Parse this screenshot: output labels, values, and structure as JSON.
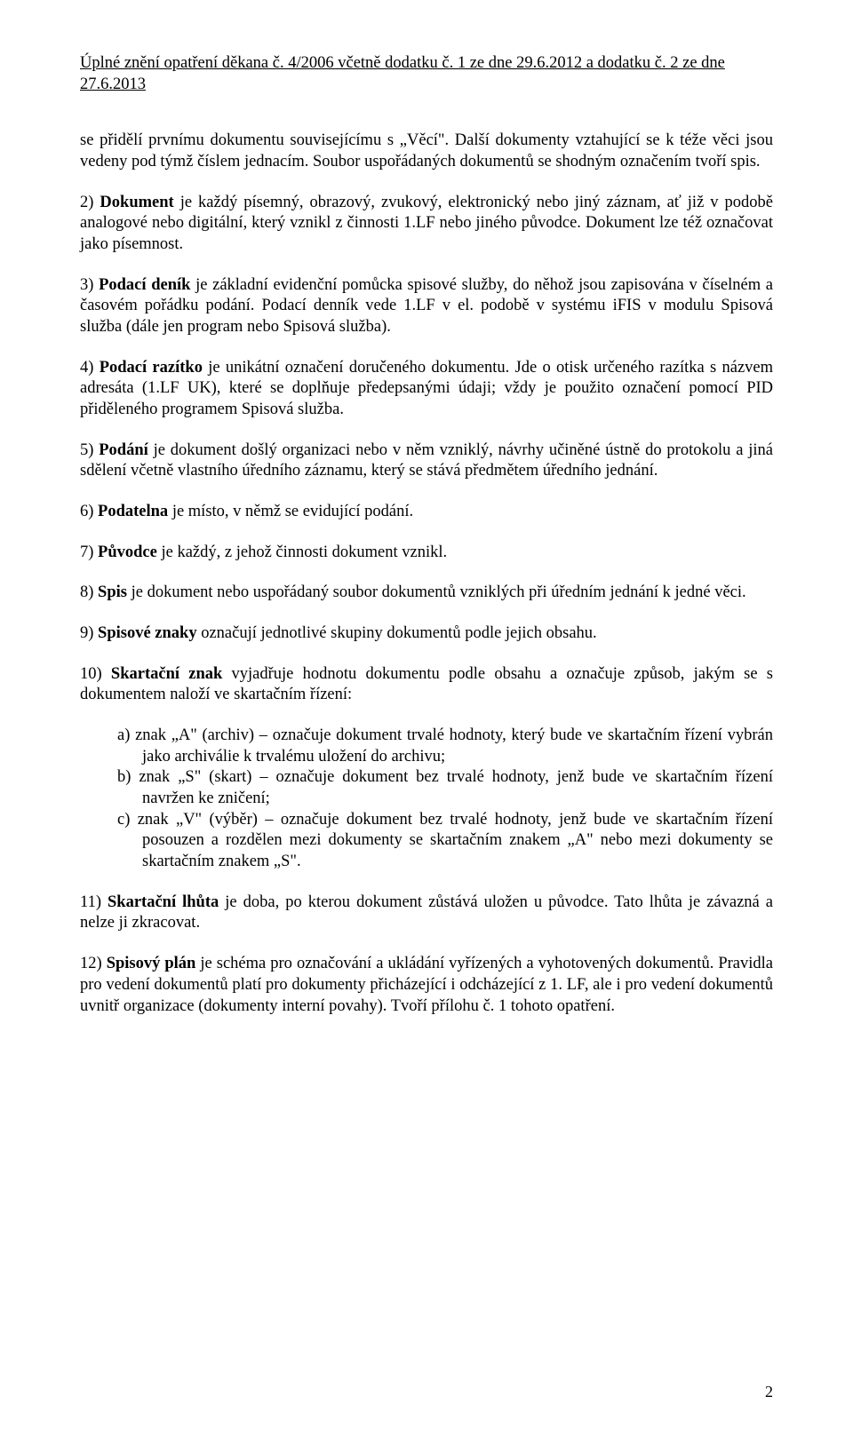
{
  "header": "Úplné znění opatření děkana č. 4/2006 včetně dodatku č. 1 ze dne 29.6.2012 a dodatku č. 2 ze dne 27.6.2013",
  "p0": "se přidělí prvnímu dokumentu souvisejícímu s „Věcí\". Další dokumenty vztahující se k téže věci jsou vedeny pod týmž číslem jednacím. Soubor uspořádaných dokumentů se shodným označením tvoří spis.",
  "p2_a": "2)   ",
  "p2_b": "Dokument",
  "p2_c": " je každý písemný, obrazový, zvukový, elektronický nebo jiný záznam, ať již v podobě analogové nebo digitální, který vznikl z činnosti 1.LF nebo jiného původce. Dokument lze též označovat jako písemnost.",
  "p3_a": "3)   ",
  "p3_b": "Podací deník",
  "p3_c": " je základní evidenční pomůcka spisové služby, do něhož jsou zapisována v číselném a časovém pořádku podání. Podací denník vede 1.LF v el. podobě v systému iFIS v modulu Spisová služba (dále jen program nebo Spisová služba).",
  "p4_a": "4)   ",
  "p4_b": "Podací razítko",
  "p4_c": " je unikátní označení doručeného dokumentu. Jde o otisk určeného razítka s názvem adresáta (1.LF UK), které se doplňuje předepsanými údaji; vždy je použito označení pomocí PID přiděleného programem Spisová služba.",
  "p5_a": "5)  ",
  "p5_b": "Podání",
  "p5_c": " je dokument došlý organizaci nebo v něm vzniklý, návrhy učiněné ústně do protokolu a jiná sdělení včetně vlastního úředního záznamu, který se stává předmětem úředního jednání.",
  "p6_a": "6)   ",
  "p6_b": "Podatelna",
  "p6_c": " je místo, v němž se evidující podání.",
  "p7_a": "7)   ",
  "p7_b": "Původce",
  "p7_c": " je každý, z jehož činnosti dokument vznikl.",
  "p8_a": "8)   ",
  "p8_b": "Spis",
  "p8_c": " je dokument nebo uspořádaný soubor dokumentů vzniklých při úředním jednání k jedné věci.",
  "p9_a": "9)   ",
  "p9_b": "Spisové znaky",
  "p9_c": " označují jednotlivé skupiny dokumentů podle jejich obsahu.",
  "p10_a": "10) ",
  "p10_b": "Skartační znak",
  "p10_c": " vyjadřuje hodnotu dokumentu podle obsahu a označuje způsob, jakým se s dokumentem naloží ve skartačním řízení:",
  "li_a": "a) znak „A\" (archiv) – označuje dokument trvalé hodnoty, který bude ve skartačním řízení vybrán jako archiválie k trvalému uložení do archivu;",
  "li_b": "b) znak „S\" (skart) – označuje dokument bez trvalé hodnoty, jenž bude ve skartačním řízení navržen ke zničení;",
  "li_c": "c) znak „V\" (výběr) – označuje dokument bez trvalé hodnoty, jenž bude ve skartačním řízení posouzen a rozdělen mezi dokumenty se skartačním znakem „A\" nebo mezi dokumenty se skartačním znakem „S\".",
  "p11_a": "11) ",
  "p11_b": "Skartační lhůta",
  "p11_c": " je doba, po kterou dokument zůstává uložen u původce. Tato lhůta je závazná a nelze ji zkracovat.",
  "p12_a": "12) ",
  "p12_b": "Spisový plán",
  "p12_c": " je schéma pro označování a ukládání vyřízených a vyhotovených dokumentů. Pravidla pro vedení dokumentů platí pro dokumenty přicházející i odcházející z 1. LF, ale i pro vedení dokumentů uvnitř organizace (dokumenty interní povahy). Tvoří přílohu č. 1 tohoto opatření.",
  "page_number": "2"
}
